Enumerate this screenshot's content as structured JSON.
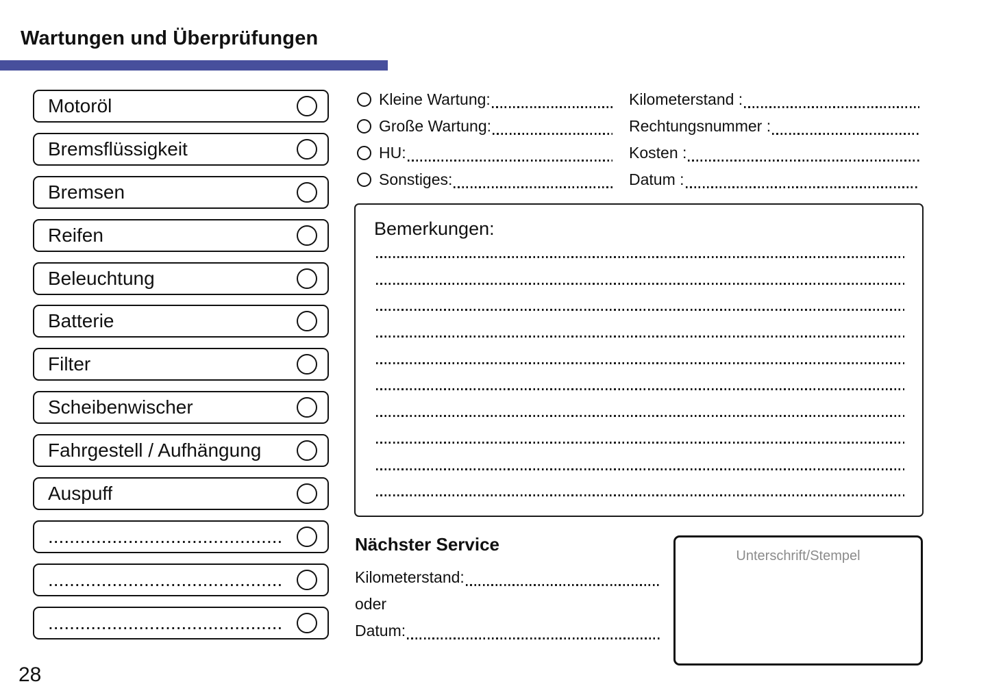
{
  "page": {
    "title": "Wartungen und Überprüfungen",
    "page_number": "28",
    "accent_color": "#474f9c"
  },
  "checklist": {
    "items": [
      {
        "label": "Motoröl"
      },
      {
        "label": "Bremsflüssigkeit"
      },
      {
        "label": "Bremsen"
      },
      {
        "label": "Reifen"
      },
      {
        "label": "Beleuchtung"
      },
      {
        "label": "Batterie"
      },
      {
        "label": "Filter"
      },
      {
        "label": "Scheibenwischer"
      },
      {
        "label": "Fahrgestell / Aufhängung"
      },
      {
        "label": "Auspuff"
      },
      {
        "label": "............................................"
      },
      {
        "label": "............................................"
      },
      {
        "label": "............................................"
      }
    ]
  },
  "service_type": {
    "options": [
      {
        "label": "Kleine Wartung:"
      },
      {
        "label": "Große Wartung:"
      },
      {
        "label": "HU:"
      },
      {
        "label": "Sonstiges:"
      }
    ]
  },
  "service_details": {
    "fields": [
      {
        "label": "Kilometerstand :"
      },
      {
        "label": "Rechtungsnummer :"
      },
      {
        "label": "Kosten :"
      },
      {
        "label": "Datum :"
      }
    ]
  },
  "remarks": {
    "title": "Bemerkungen:",
    "line_count": 10
  },
  "next_service": {
    "title": "Nächster Service",
    "km_label": "Kilometerstand:",
    "or_label": "oder",
    "date_label": "Datum:"
  },
  "signature": {
    "placeholder": "Unterschrift/Stempel"
  }
}
